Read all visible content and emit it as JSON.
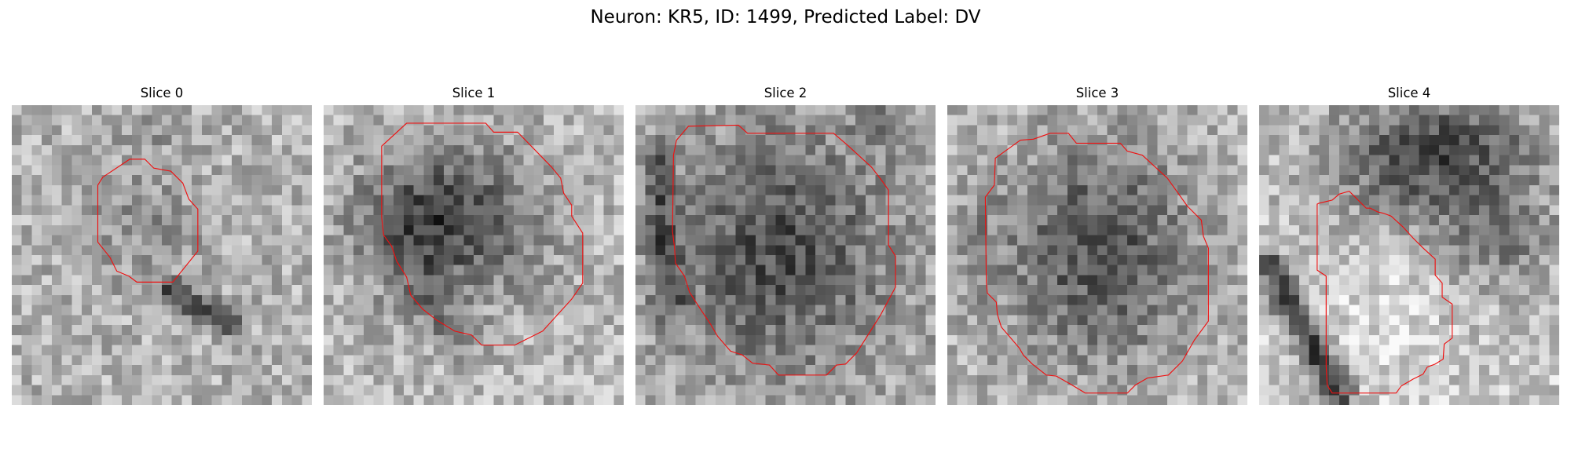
{
  "figure": {
    "suptitle": "Neuron: KR5, ID: 1499, Predicted Label: DV"
  },
  "colors": {
    "contour": "#ee1111",
    "background": "#ffffff",
    "colormap": "gray"
  },
  "slices": [
    {
      "title": "Slice 0"
    },
    {
      "title": "Slice 1"
    },
    {
      "title": "Slice 2"
    },
    {
      "title": "Slice 3"
    },
    {
      "title": "Slice 4"
    }
  ]
}
